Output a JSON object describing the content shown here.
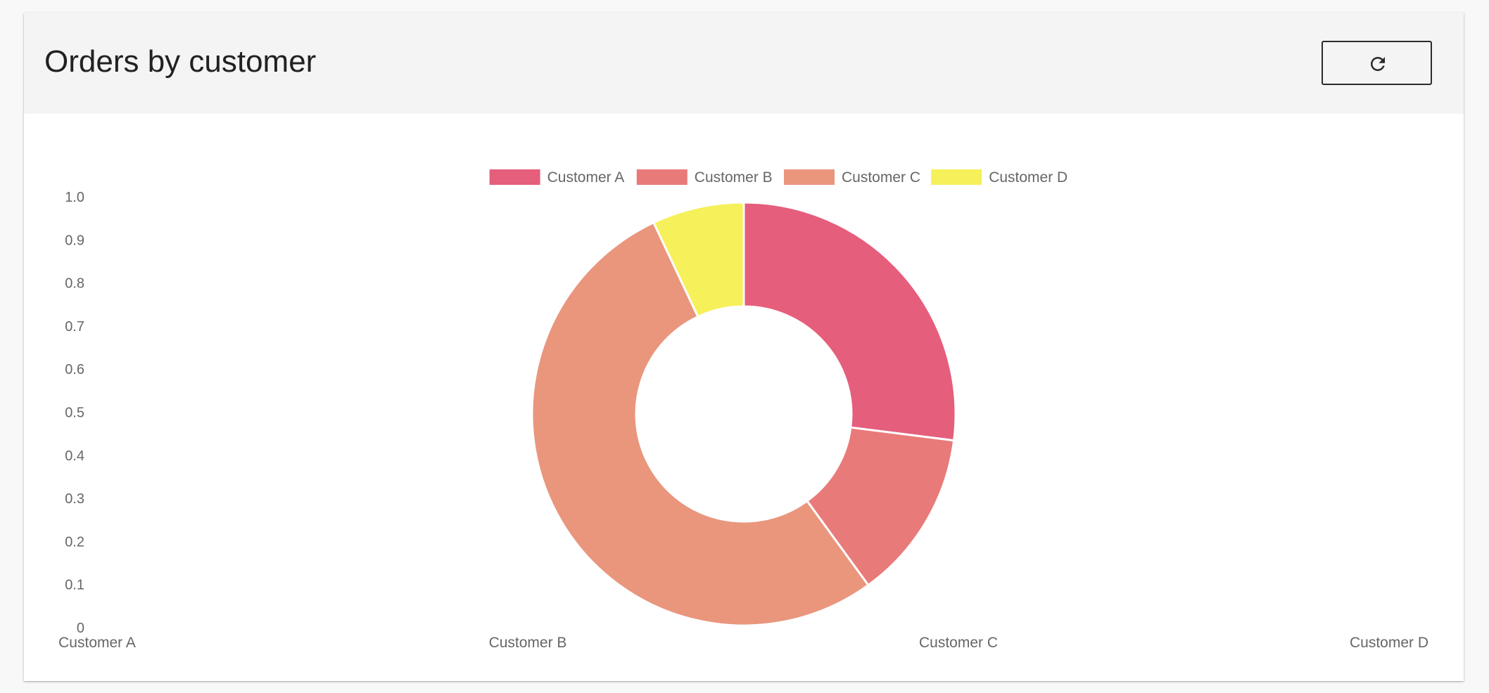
{
  "card": {
    "title": "Orders by customer",
    "refresh_icon": "refresh-icon"
  },
  "colors": {
    "header_bg": "#f4f4f4",
    "customer_a": "#e55e7b",
    "customer_b": "#e97a7a",
    "customer_c": "#e9967d",
    "customer_d": "#f6f05a"
  },
  "chart_data": {
    "type": "pie",
    "variant": "doughnut",
    "categories": [
      "Customer A",
      "Customer B",
      "Customer C",
      "Customer D"
    ],
    "values": [
      27,
      13,
      53,
      7
    ],
    "colors": [
      "#e55e7b",
      "#e97a7a",
      "#e9967d",
      "#f6f05a"
    ],
    "legend": {
      "position": "top",
      "entries": [
        "Customer A",
        "Customer B",
        "Customer C",
        "Customer D"
      ]
    },
    "y_tick_labels": [
      "0",
      "0.1",
      "0.2",
      "0.3",
      "0.4",
      "0.5",
      "0.6",
      "0.7",
      "0.8",
      "0.9",
      "1.0"
    ],
    "x_tick_labels": [
      "Customer A",
      "Customer B",
      "Customer C",
      "Customer D"
    ],
    "ylim": [
      0,
      1
    ],
    "grid": false
  }
}
